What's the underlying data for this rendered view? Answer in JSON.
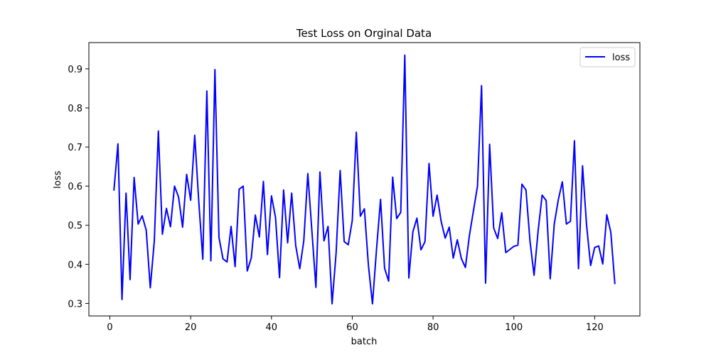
{
  "chart_data": {
    "type": "line",
    "title": "Test Loss on Orginal Data",
    "xlabel": "batch",
    "ylabel": "loss",
    "xlim": [
      -5.2,
      131.2
    ],
    "ylim": [
      0.268,
      0.967
    ],
    "xticks": [
      0,
      20,
      40,
      60,
      80,
      100,
      120
    ],
    "yticks": [
      0.3,
      0.4,
      0.5,
      0.6,
      0.7,
      0.8,
      0.9
    ],
    "xtick_labels": [
      "0",
      "20",
      "40",
      "60",
      "80",
      "100",
      "120"
    ],
    "ytick_labels": [
      "0.3",
      "0.4",
      "0.5",
      "0.6",
      "0.7",
      "0.8",
      "0.9"
    ],
    "grid": false,
    "legend_position": "top-right",
    "series": [
      {
        "name": "loss",
        "color": "#0000ff",
        "x": [
          1,
          2,
          3,
          4,
          5,
          6,
          7,
          8,
          9,
          10,
          11,
          12,
          13,
          14,
          15,
          16,
          17,
          18,
          19,
          20,
          21,
          22,
          23,
          24,
          25,
          26,
          27,
          28,
          29,
          30,
          31,
          32,
          33,
          34,
          35,
          36,
          37,
          38,
          39,
          40,
          41,
          42,
          43,
          44,
          45,
          46,
          47,
          48,
          49,
          50,
          51,
          52,
          53,
          54,
          55,
          56,
          57,
          58,
          59,
          60,
          61,
          62,
          63,
          64,
          65,
          66,
          67,
          68,
          69,
          70,
          71,
          72,
          73,
          74,
          75,
          76,
          77,
          78,
          79,
          80,
          81,
          82,
          83,
          84,
          85,
          86,
          87,
          88,
          89,
          90,
          91,
          92,
          93,
          94,
          95,
          96,
          97,
          98,
          99,
          100,
          101,
          102,
          103,
          104,
          105,
          106,
          107,
          108,
          109,
          110,
          111,
          112,
          113,
          114,
          115,
          116,
          117,
          118,
          119,
          120,
          121,
          122,
          123,
          124,
          125
        ],
        "values": [
          0.589,
          0.708,
          0.31,
          0.582,
          0.361,
          0.622,
          0.503,
          0.524,
          0.487,
          0.34,
          0.46,
          0.741,
          0.477,
          0.543,
          0.496,
          0.6,
          0.572,
          0.495,
          0.63,
          0.564,
          0.73,
          0.561,
          0.413,
          0.843,
          0.409,
          0.898,
          0.469,
          0.414,
          0.406,
          0.497,
          0.394,
          0.592,
          0.6,
          0.383,
          0.416,
          0.526,
          0.47,
          0.612,
          0.425,
          0.575,
          0.52,
          0.366,
          0.59,
          0.455,
          0.582,
          0.448,
          0.389,
          0.46,
          0.632,
          0.486,
          0.341,
          0.636,
          0.46,
          0.497,
          0.299,
          0.429,
          0.64,
          0.458,
          0.45,
          0.512,
          0.738,
          0.523,
          0.542,
          0.397,
          0.299,
          0.438,
          0.566,
          0.39,
          0.357,
          0.623,
          0.517,
          0.533,
          0.935,
          0.365,
          0.483,
          0.518,
          0.437,
          0.458,
          0.658,
          0.523,
          0.577,
          0.51,
          0.467,
          0.495,
          0.416,
          0.463,
          0.415,
          0.392,
          0.474,
          0.537,
          0.6,
          0.857,
          0.352,
          0.707,
          0.493,
          0.466,
          0.532,
          0.43,
          0.438,
          0.446,
          0.449,
          0.605,
          0.59,
          0.459,
          0.372,
          0.485,
          0.577,
          0.563,
          0.363,
          0.503,
          0.565,
          0.611,
          0.503,
          0.51,
          0.716,
          0.389,
          0.652,
          0.5,
          0.397,
          0.443,
          0.447,
          0.401,
          0.527,
          0.482,
          0.35
        ]
      }
    ]
  }
}
